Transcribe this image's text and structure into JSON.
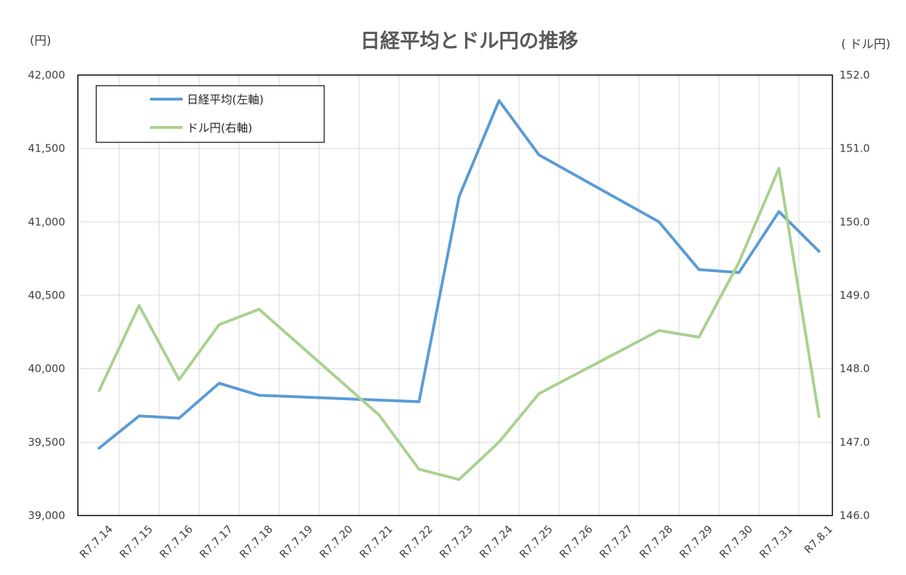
{
  "chart_data": {
    "type": "line",
    "title": "日経平均とドル円の推移",
    "left_axis_unit": "(円)",
    "right_axis_unit": "( ドル円)",
    "categories": [
      "R7.7.14",
      "R7.7.15",
      "R7.7.16",
      "R7.7.17",
      "R7.7.18",
      "R7.7.19",
      "R7.7.20",
      "R7.7.21",
      "R7.7.22",
      "R7.7.23",
      "R7.7.24",
      "R7.7.25",
      "R7.7.26",
      "R7.7.27",
      "R7.7.28",
      "R7.7.29",
      "R7.7.30",
      "R7.7.31",
      "R7.8.1"
    ],
    "left_ylim": [
      39000,
      42000
    ],
    "left_ticks": [
      "39,000",
      "39,500",
      "40,000",
      "40,500",
      "41,000",
      "41,500",
      "42,000"
    ],
    "right_ylim": [
      146.0,
      152.0
    ],
    "right_ticks": [
      "146.0",
      "147.0",
      "148.0",
      "149.0",
      "150.0",
      "151.0",
      "152.0"
    ],
    "grid": true,
    "legend_position": "top-left",
    "series": [
      {
        "name": "日経平均(左軸)",
        "axis": "left",
        "color": "#5b9bd5",
        "points": [
          {
            "x": 0,
            "y": 39459
          },
          {
            "x": 1,
            "y": 39678
          },
          {
            "x": 2,
            "y": 39663
          },
          {
            "x": 3,
            "y": 39901
          },
          {
            "x": 4,
            "y": 39819
          },
          {
            "x": 8,
            "y": 39775
          },
          {
            "x": 9,
            "y": 41171
          },
          {
            "x": 10,
            "y": 41826
          },
          {
            "x": 11,
            "y": 41456
          },
          {
            "x": 14,
            "y": 41000
          },
          {
            "x": 15,
            "y": 40675
          },
          {
            "x": 16,
            "y": 40655
          },
          {
            "x": 17,
            "y": 41070
          },
          {
            "x": 18,
            "y": 40800
          }
        ]
      },
      {
        "name": "ドル円(右軸)",
        "axis": "right",
        "color": "#a9d18e",
        "points": [
          {
            "x": 0,
            "y": 147.7
          },
          {
            "x": 1,
            "y": 148.86
          },
          {
            "x": 2,
            "y": 147.85
          },
          {
            "x": 3,
            "y": 148.6
          },
          {
            "x": 4,
            "y": 148.81
          },
          {
            "x": 7,
            "y": 147.37
          },
          {
            "x": 8,
            "y": 146.63
          },
          {
            "x": 9,
            "y": 146.49
          },
          {
            "x": 10,
            "y": 147.0
          },
          {
            "x": 11,
            "y": 147.66
          },
          {
            "x": 14,
            "y": 148.52
          },
          {
            "x": 15,
            "y": 148.43
          },
          {
            "x": 16,
            "y": 149.45
          },
          {
            "x": 17,
            "y": 150.73
          },
          {
            "x": 18,
            "y": 147.35
          }
        ]
      }
    ]
  }
}
